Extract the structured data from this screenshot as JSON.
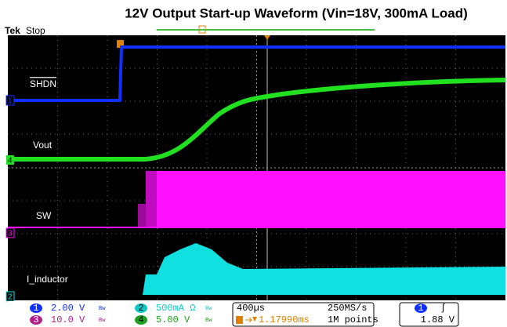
{
  "header": {
    "title": "12V Output Start-up Waveform (Vin=18V, 300mA Load)",
    "brand": "Tek",
    "status": "Stop"
  },
  "traces": [
    {
      "label": "SHDN",
      "channel": "1"
    },
    {
      "label": "Vout",
      "channel": "4"
    },
    {
      "label": "SW",
      "channel": "3"
    },
    {
      "label": "I_inductor",
      "channel": "2"
    }
  ],
  "readouts": {
    "ch1": {
      "channel": "1",
      "scale": "2.00 V",
      "bw": "Bw"
    },
    "ch2": {
      "channel": "2",
      "scale": "500mA Ω",
      "bw": "Bw"
    },
    "ch3": {
      "channel": "3",
      "scale": "10.0 V",
      "bw": "Bw"
    },
    "ch4": {
      "channel": "4",
      "scale": "5.00 V",
      "bw": "Bw"
    },
    "timebase": "400µs",
    "sample_rate": "250MS/s",
    "trigger_position": "1.17990ms",
    "record_length": "1M points",
    "trigger_channel": "1",
    "trigger_slope": "ʃ",
    "trigger_level": "1.88 V"
  }
}
